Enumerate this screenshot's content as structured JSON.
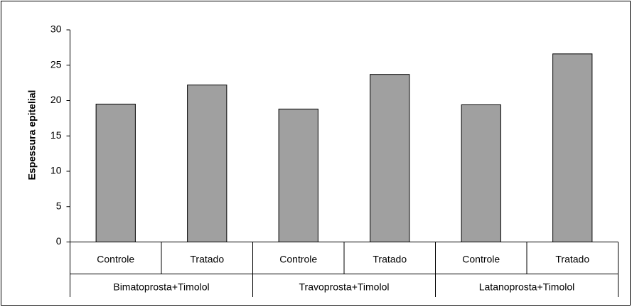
{
  "chart_data": {
    "type": "bar",
    "y_label": "Espessura epitelial",
    "categories": [
      "Controle",
      "Tratado",
      "Controle",
      "Tratado",
      "Controle",
      "Tratado"
    ],
    "groups": [
      "Bimatoprosta+Timolol",
      "Travoprosta+Timolol",
      "Latanoprosta+Timolol"
    ],
    "values": [
      19.5,
      22.2,
      18.8,
      23.7,
      19.4,
      26.6
    ],
    "color": "#a0a0a0",
    "ylim": [
      0,
      30
    ],
    "yticks": [
      0,
      5,
      10,
      15,
      20,
      25,
      30
    ],
    "grid": false
  }
}
